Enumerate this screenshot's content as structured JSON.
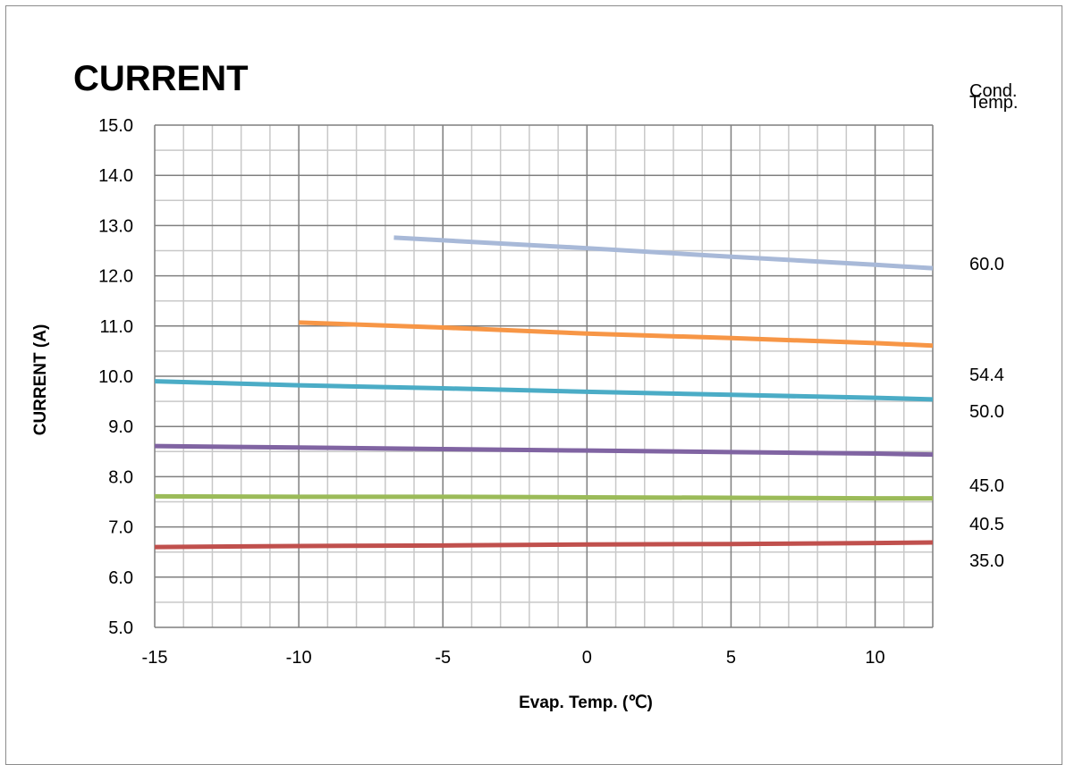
{
  "chart_data": {
    "type": "line",
    "title": "CURRENT",
    "xlabel": "Evap. Temp. (℃)",
    "ylabel": "CURRENT (A)",
    "legend_title": [
      "Cond.",
      "Temp."
    ],
    "xlim": [
      -15,
      12
    ],
    "ylim": [
      5.0,
      15.0
    ],
    "x_ticks": [
      -15,
      -10,
      -5,
      0,
      5,
      10
    ],
    "x_tick_labels": [
      "-15",
      "-10",
      "-5",
      "0",
      "5",
      "10"
    ],
    "y_ticks": [
      5.0,
      6.0,
      7.0,
      8.0,
      9.0,
      10.0,
      11.0,
      12.0,
      13.0,
      14.0,
      15.0
    ],
    "y_tick_labels": [
      "5.0",
      "6.0",
      "7.0",
      "8.0",
      "9.0",
      "10.0",
      "11.0",
      "12.0",
      "13.0",
      "14.0",
      "15.0"
    ],
    "grid": true,
    "series": [
      {
        "name": "60.0",
        "color": "#a8b9d8",
        "x": [
          -6.7,
          0,
          5,
          10,
          12
        ],
        "y": [
          12.76,
          12.55,
          12.38,
          12.22,
          12.15
        ]
      },
      {
        "name": "54.4",
        "color": "#f79646",
        "x": [
          -10,
          -5,
          0,
          5,
          10,
          12
        ],
        "y": [
          11.07,
          10.97,
          10.85,
          10.76,
          10.66,
          10.61
        ]
      },
      {
        "name": "50.0",
        "color": "#4bacc6",
        "x": [
          -15,
          -10,
          -5,
          0,
          5,
          10,
          12
        ],
        "y": [
          9.9,
          9.82,
          9.76,
          9.69,
          9.63,
          9.57,
          9.54
        ]
      },
      {
        "name": "45.0",
        "color": "#8064a2",
        "x": [
          -15,
          -10,
          -5,
          0,
          5,
          10,
          12
        ],
        "y": [
          8.61,
          8.58,
          8.55,
          8.52,
          8.49,
          8.46,
          8.44
        ]
      },
      {
        "name": "40.5",
        "color": "#9bbb59",
        "x": [
          -15,
          -10,
          -5,
          0,
          5,
          10,
          12
        ],
        "y": [
          7.61,
          7.6,
          7.6,
          7.59,
          7.58,
          7.57,
          7.57
        ]
      },
      {
        "name": "35.0",
        "color": "#c0504d",
        "x": [
          -15,
          -10,
          -5,
          0,
          5,
          10,
          12
        ],
        "y": [
          6.6,
          6.62,
          6.63,
          6.65,
          6.66,
          6.68,
          6.69
        ]
      }
    ]
  }
}
